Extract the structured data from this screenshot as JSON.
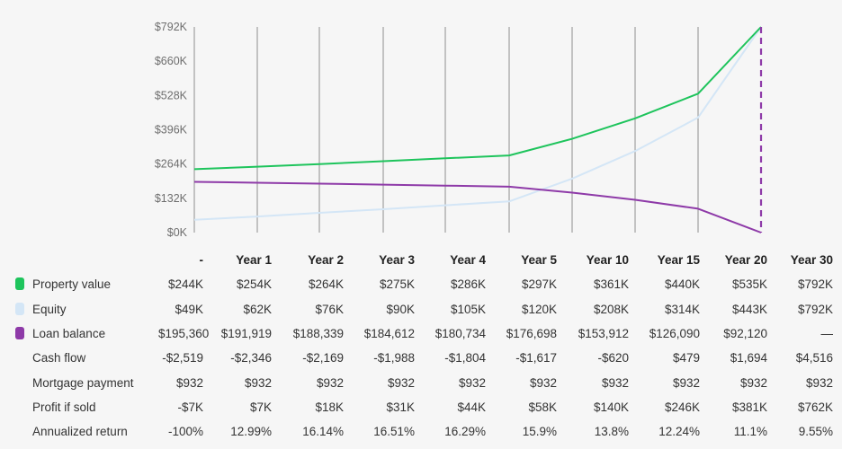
{
  "chart_data": {
    "type": "line",
    "categories": [
      "-",
      "Year 1",
      "Year 2",
      "Year 3",
      "Year 4",
      "Year 5",
      "Year 10",
      "Year 15",
      "Year 20",
      "Year 30"
    ],
    "ylim": [
      0,
      792
    ],
    "y_unit": "$K",
    "y_ticks": [
      "$0K",
      "$132K",
      "$264K",
      "$396K",
      "$528K",
      "$660K",
      "$792K"
    ],
    "y_tick_values": [
      0,
      132,
      264,
      396,
      528,
      660,
      792
    ],
    "series": [
      {
        "name": "Property value",
        "color": "#1ec45c",
        "values": [
          244,
          254,
          264,
          275,
          286,
          297,
          361,
          440,
          535,
          792
        ]
      },
      {
        "name": "Equity",
        "color": "#d4e6f6",
        "values": [
          49,
          62,
          76,
          90,
          105,
          120,
          208,
          314,
          443,
          792
        ]
      },
      {
        "name": "Loan balance",
        "color": "#8e3aa8",
        "values": [
          195.36,
          191.919,
          188.339,
          184.612,
          180.734,
          176.698,
          153.912,
          126.09,
          92.12,
          0
        ]
      }
    ],
    "grid": "vertical",
    "legend": "table-left"
  },
  "table": {
    "headers": [
      "-",
      "Year 1",
      "Year 2",
      "Year 3",
      "Year 4",
      "Year 5",
      "Year 10",
      "Year 15",
      "Year 20",
      "Year 30"
    ],
    "rows": [
      {
        "label": "Property value",
        "swatch": "#1ec45c",
        "values": [
          "$244K",
          "$254K",
          "$264K",
          "$275K",
          "$286K",
          "$297K",
          "$361K",
          "$440K",
          "$535K",
          "$792K"
        ]
      },
      {
        "label": "Equity",
        "swatch": "#d4e6f6",
        "values": [
          "$49K",
          "$62K",
          "$76K",
          "$90K",
          "$105K",
          "$120K",
          "$208K",
          "$314K",
          "$443K",
          "$792K"
        ]
      },
      {
        "label": "Loan balance",
        "swatch": "#8e3aa8",
        "values": [
          "$195,360",
          "$191,919",
          "$188,339",
          "$184,612",
          "$180,734",
          "$176,698",
          "$153,912",
          "$126,090",
          "$92,120",
          "—"
        ]
      },
      {
        "label": "Cash flow",
        "values": [
          "-$2,519",
          "-$2,346",
          "-$2,169",
          "-$1,988",
          "-$1,804",
          "-$1,617",
          "-$620",
          "$479",
          "$1,694",
          "$4,516"
        ]
      },
      {
        "label": "Mortgage payment",
        "values": [
          "$932",
          "$932",
          "$932",
          "$932",
          "$932",
          "$932",
          "$932",
          "$932",
          "$932",
          "$932"
        ]
      },
      {
        "label": "Profit if sold",
        "values": [
          "-$7K",
          "$7K",
          "$18K",
          "$31K",
          "$44K",
          "$58K",
          "$140K",
          "$246K",
          "$381K",
          "$762K"
        ]
      },
      {
        "label": "Annualized return",
        "values": [
          "-100%",
          "12.99%",
          "16.14%",
          "16.51%",
          "16.29%",
          "15.9%",
          "13.8%",
          "12.24%",
          "11.1%",
          "9.55%"
        ]
      }
    ]
  }
}
